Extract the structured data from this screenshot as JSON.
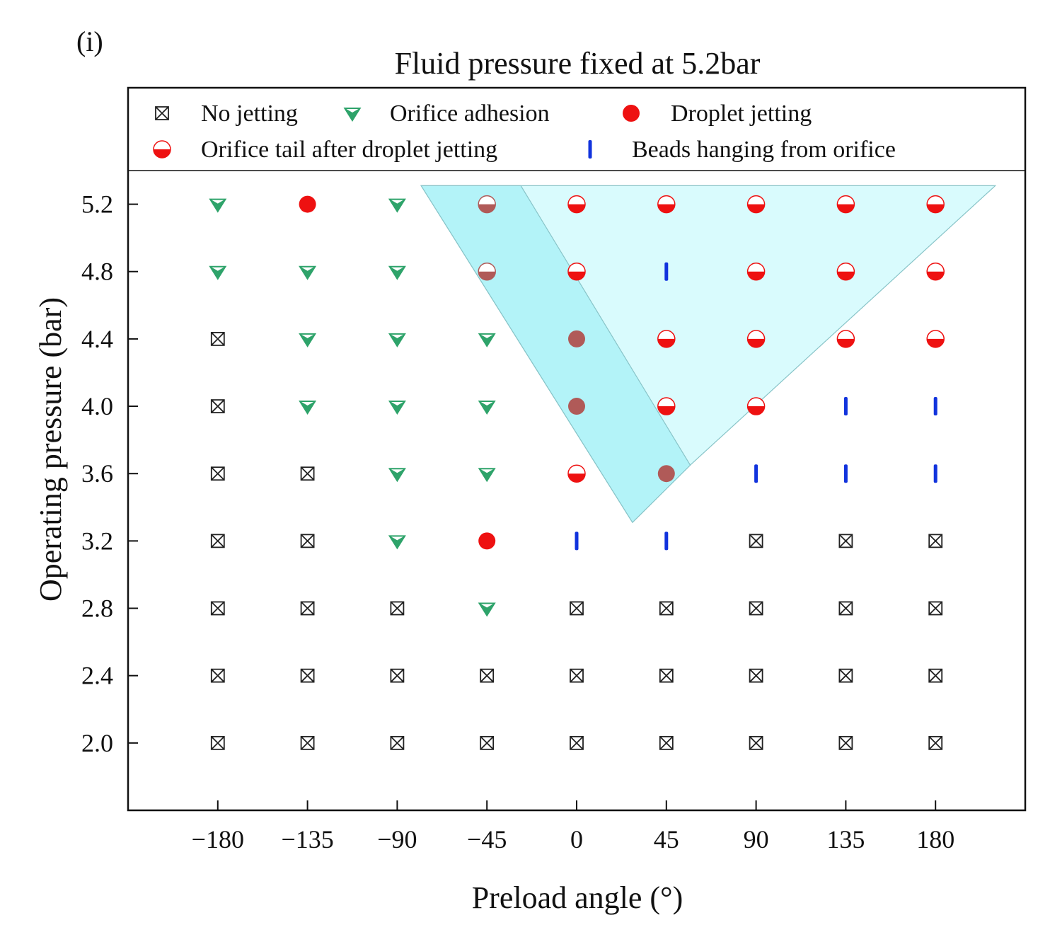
{
  "panel_label": "(i)",
  "colors": {
    "no_jetting": "#222222",
    "orifice_adhesion": "#2ea36a",
    "droplet": "#ee1111",
    "brown": "#b05a58",
    "beads": "#1133dd",
    "region_dark": "#b3f3f8",
    "region_light": "#d9fbfd",
    "region_stroke": "#88c4c8"
  },
  "chart_data": {
    "type": "scatter",
    "title": "Fluid pressure fixed at 5.2bar",
    "xlabel": "Preload angle (°)",
    "ylabel": "Operating pressure (bar)",
    "xlim": [
      -225,
      225
    ],
    "ylim": [
      1.6,
      5.4
    ],
    "x_ticks": [
      -180,
      -135,
      -90,
      -45,
      0,
      45,
      90,
      135,
      180
    ],
    "x_tick_labels": [
      "−180",
      "−135",
      "−90",
      "−45",
      "0",
      "45",
      "90",
      "135",
      "180"
    ],
    "y_ticks": [
      2.0,
      2.4,
      2.8,
      3.2,
      3.6,
      4.0,
      4.4,
      4.8,
      5.2
    ],
    "y_tick_labels": [
      "2.0",
      "2.4",
      "2.8",
      "3.2",
      "3.6",
      "4.0",
      "4.4",
      "4.8",
      "5.2"
    ],
    "legend": [
      {
        "key": "N",
        "label": "No jetting"
      },
      {
        "key": "A",
        "label": "Orifice adhesion"
      },
      {
        "key": "D",
        "label": "Droplet jetting"
      },
      {
        "key": "T",
        "label": "Orifice tail after droplet jetting"
      },
      {
        "key": "B",
        "label": "Beads hanging from orifice"
      }
    ],
    "legend_position": "top",
    "marker_keys": {
      "N": "No jetting",
      "A": "Orifice adhesion",
      "D": "Droplet jetting",
      "T": "Orifice tail after droplet jetting",
      "B": "Beads hanging from orifice",
      "Tb": "Orifice tail after droplet jetting (inside dark region)",
      "Db": "Droplet jetting (inside dark region)"
    },
    "grid_x": [
      -180,
      -135,
      -90,
      -45,
      0,
      45,
      90,
      135,
      180
    ],
    "grid_y": [
      5.2,
      4.8,
      4.4,
      4.0,
      3.6,
      3.2,
      2.8,
      2.4,
      2.0
    ],
    "grid": [
      [
        "A",
        "D",
        "A",
        "Tb",
        "T",
        "T",
        "T",
        "T",
        "T"
      ],
      [
        "A",
        "A",
        "A",
        "Tb",
        "T",
        "B",
        "T",
        "T",
        "T"
      ],
      [
        "N",
        "A",
        "A",
        "A",
        "Db",
        "T",
        "T",
        "T",
        "T"
      ],
      [
        "N",
        "A",
        "A",
        "A",
        "Db",
        "T",
        "T",
        "B",
        "B"
      ],
      [
        "N",
        "N",
        "A",
        "A",
        "T",
        "Db",
        "B",
        "B",
        "B"
      ],
      [
        "N",
        "N",
        "A",
        "D",
        "B",
        "B",
        "N",
        "N",
        "N"
      ],
      [
        "N",
        "N",
        "N",
        "A",
        "N",
        "N",
        "N",
        "N",
        "N"
      ],
      [
        "N",
        "N",
        "N",
        "N",
        "N",
        "N",
        "N",
        "N",
        "N"
      ],
      [
        "N",
        "N",
        "N",
        "N",
        "N",
        "N",
        "N",
        "N",
        "N"
      ]
    ],
    "regions": [
      {
        "name": "light-region",
        "points": [
          [
            -78,
            5.31
          ],
          [
            28,
            3.31
          ],
          [
            56,
            3.64
          ],
          [
            210,
            5.31
          ]
        ]
      },
      {
        "name": "dark-region",
        "points": [
          [
            -78,
            5.31
          ],
          [
            -28,
            5.31
          ],
          [
            57,
            3.65
          ],
          [
            28,
            3.31
          ]
        ]
      }
    ],
    "grid_lines": false
  }
}
